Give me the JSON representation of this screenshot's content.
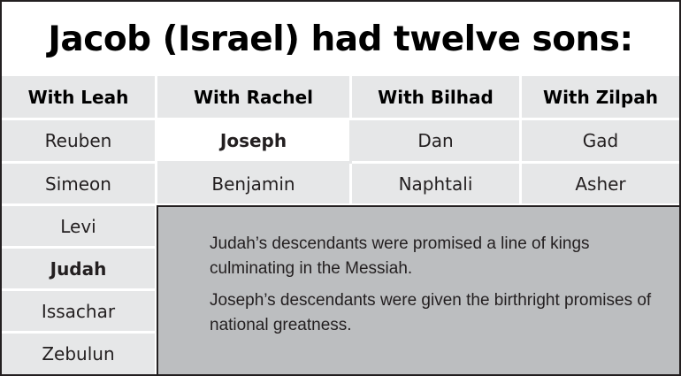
{
  "title": "Jacob (Israel) had twelve sons:",
  "columns": [
    {
      "header": "With Leah",
      "sons": [
        "Reuben",
        "Simeon",
        "Levi",
        "Judah",
        "Issachar",
        "Zebulun"
      ],
      "bold": [
        "Judah"
      ]
    },
    {
      "header": "With Rachel",
      "sons": [
        "Joseph",
        "Benjamin"
      ],
      "bold": [
        "Joseph"
      ]
    },
    {
      "header": "With Bilhad",
      "sons": [
        "Dan",
        "Naphtali"
      ],
      "bold": []
    },
    {
      "header": "With Zilpah",
      "sons": [
        "Gad",
        "Asher"
      ],
      "bold": []
    }
  ],
  "notes": [
    "Judah’s descendants were promised a line of kings culminating in the Messiah.",
    "Joseph’s descendants were given the birthright promises of national greatness."
  ],
  "colors": {
    "cell_background": "#e6e7e8",
    "note_background": "#bcbec0",
    "border": "#231f20"
  }
}
